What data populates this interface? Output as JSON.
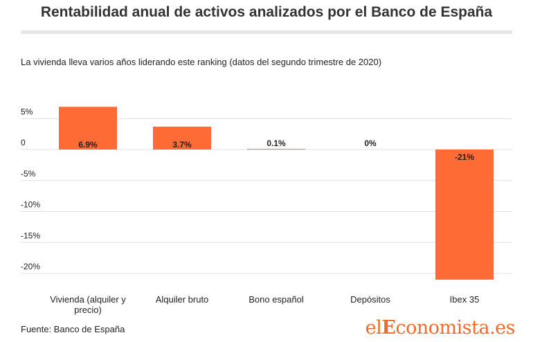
{
  "title": "Rentabilidad anual de activos analizados por el Banco de España",
  "subtitle": "La vivienda lleva varios años liderando este ranking (datos del segundo trimestre de 2020)",
  "source": "Fuente: Banco de España",
  "brand": {
    "prefix": "el",
    "highlight": "E",
    "suffix": "conomista.es"
  },
  "colors": {
    "bar": "#ff6b35",
    "grid": "#e0e0e0",
    "text": "#222222",
    "brand": "#ef6b2d"
  },
  "chart_data": {
    "type": "bar",
    "categories": [
      "Vivienda (alquiler y precio)",
      "Alquiler bruto",
      "Bono español",
      "Depósitos",
      "Ibex 35"
    ],
    "category_lines": [
      [
        "Vivienda (alquiler y",
        "precio)"
      ],
      [
        "Alquiler bruto"
      ],
      [
        "Bono español"
      ],
      [
        "Depósitos"
      ],
      [
        "Ibex 35"
      ]
    ],
    "values": [
      6.9,
      3.7,
      0.1,
      0,
      -21
    ],
    "data_labels": [
      "6.9%",
      "3.7%",
      "0.1%",
      "0%",
      "-21%"
    ],
    "yticks": [
      5,
      0,
      -5,
      -10,
      -15,
      -20
    ],
    "ytick_labels": [
      "5%",
      "0",
      "-5%",
      "-10%",
      "-15%",
      "-20%"
    ],
    "ylim": [
      -23,
      8
    ],
    "grid": true,
    "legend": "none"
  }
}
